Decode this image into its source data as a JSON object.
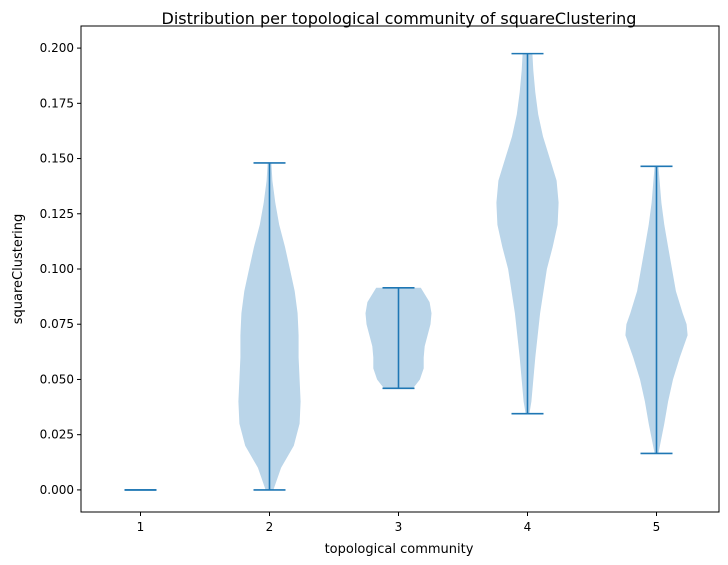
{
  "chart_data": {
    "type": "violin",
    "title": "Distribution per topological community of squareClustering",
    "xlabel": "topological community",
    "ylabel": "squareClustering",
    "categories": [
      "1",
      "2",
      "3",
      "4",
      "5"
    ],
    "ylim": [
      -0.01,
      0.21
    ],
    "yticks": [
      "0.000",
      "0.025",
      "0.050",
      "0.075",
      "0.100",
      "0.125",
      "0.150",
      "0.175",
      "0.200"
    ],
    "grid": false,
    "colors": {
      "body": "#bad5e9",
      "lines": "#1f77b4",
      "axis": "#000000"
    },
    "violins": [
      {
        "category": "1",
        "min": 0.0,
        "max": 0.0,
        "density": []
      },
      {
        "category": "2",
        "min": 0.0,
        "max": 0.148,
        "density": [
          [
            0.0,
            0.004
          ],
          [
            0.01,
            0.012
          ],
          [
            0.02,
            0.025
          ],
          [
            0.03,
            0.031
          ],
          [
            0.04,
            0.032
          ],
          [
            0.05,
            0.031
          ],
          [
            0.06,
            0.03
          ],
          [
            0.07,
            0.03
          ],
          [
            0.08,
            0.029
          ],
          [
            0.09,
            0.026
          ],
          [
            0.1,
            0.021
          ],
          [
            0.11,
            0.016
          ],
          [
            0.12,
            0.01
          ],
          [
            0.13,
            0.006
          ],
          [
            0.14,
            0.003
          ],
          [
            0.148,
            0.002
          ]
        ]
      },
      {
        "category": "3",
        "min": 0.046,
        "max": 0.0915,
        "density": [
          [
            0.046,
            0.015
          ],
          [
            0.05,
            0.022
          ],
          [
            0.055,
            0.026
          ],
          [
            0.06,
            0.026
          ],
          [
            0.065,
            0.027
          ],
          [
            0.07,
            0.03
          ],
          [
            0.075,
            0.033
          ],
          [
            0.08,
            0.034
          ],
          [
            0.085,
            0.032
          ],
          [
            0.0915,
            0.023
          ]
        ]
      },
      {
        "category": "4",
        "min": 0.0345,
        "max": 0.1975,
        "density": [
          [
            0.0345,
            0.002
          ],
          [
            0.04,
            0.004
          ],
          [
            0.06,
            0.008
          ],
          [
            0.08,
            0.013
          ],
          [
            0.1,
            0.02
          ],
          [
            0.11,
            0.026
          ],
          [
            0.12,
            0.031
          ],
          [
            0.13,
            0.032
          ],
          [
            0.14,
            0.03
          ],
          [
            0.15,
            0.023
          ],
          [
            0.16,
            0.016
          ],
          [
            0.17,
            0.011
          ],
          [
            0.18,
            0.008
          ],
          [
            0.19,
            0.006
          ],
          [
            0.1975,
            0.005
          ]
        ]
      },
      {
        "category": "5",
        "min": 0.0165,
        "max": 0.1465,
        "density": [
          [
            0.0165,
            0.002
          ],
          [
            0.03,
            0.008
          ],
          [
            0.04,
            0.012
          ],
          [
            0.05,
            0.017
          ],
          [
            0.06,
            0.024
          ],
          [
            0.07,
            0.032
          ],
          [
            0.075,
            0.031
          ],
          [
            0.08,
            0.027
          ],
          [
            0.09,
            0.02
          ],
          [
            0.1,
            0.016
          ],
          [
            0.11,
            0.012
          ],
          [
            0.12,
            0.008
          ],
          [
            0.13,
            0.005
          ],
          [
            0.1465,
            0.002
          ]
        ]
      }
    ]
  }
}
